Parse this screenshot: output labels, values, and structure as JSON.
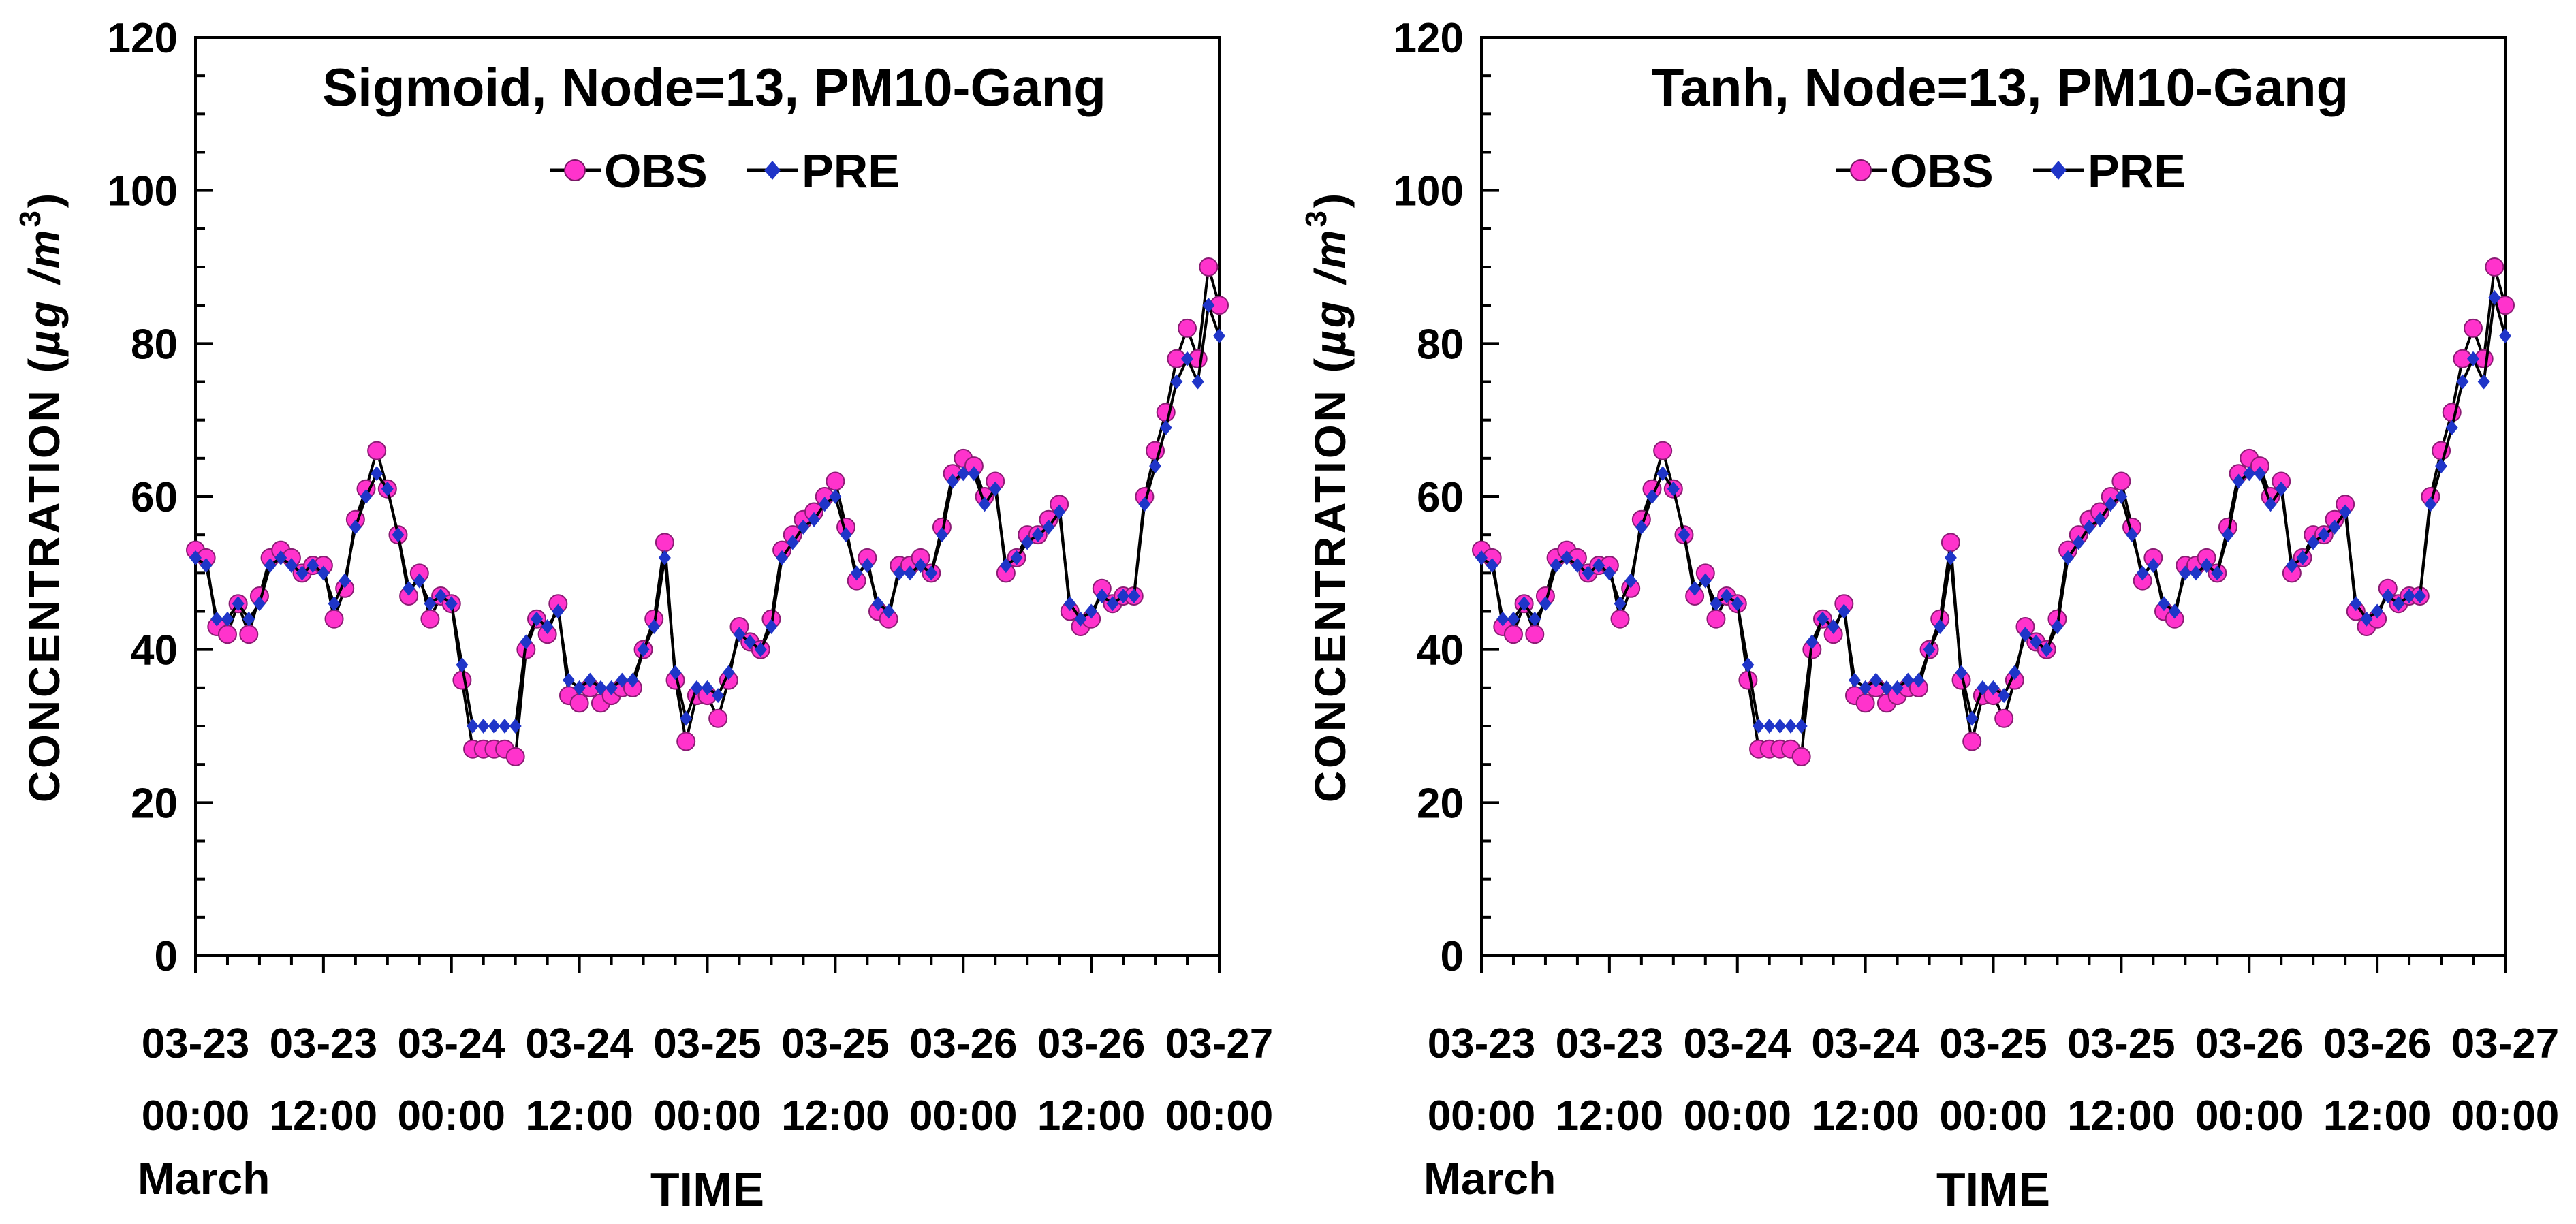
{
  "chart_data": [
    {
      "type": "line",
      "title": "Sigmoid, Node=13, PM10-Gang",
      "ylabel": "CONCENTRATION",
      "ylabel_unit": "µg /m",
      "ylabel_unit_sup": "3",
      "ylabel_paren_open": "(",
      "ylabel_paren_close": ")",
      "xlabel": "TIME",
      "month_label": "March",
      "ylim": [
        0,
        120
      ],
      "yticks": [
        "0",
        "20",
        "40",
        "60",
        "80",
        "100",
        "120"
      ],
      "xlim": [
        0,
        96
      ],
      "xtick_labels": [
        {
          "date": "03-23",
          "time": "00:00"
        },
        {
          "date": "03-23",
          "time": "12:00"
        },
        {
          "date": "03-24",
          "time": "00:00"
        },
        {
          "date": "03-24",
          "time": "12:00"
        },
        {
          "date": "03-25",
          "time": "00:00"
        },
        {
          "date": "03-25",
          "time": "12:00"
        },
        {
          "date": "03-26",
          "time": "00:00"
        },
        {
          "date": "03-26",
          "time": "12:00"
        },
        {
          "date": "03-27",
          "time": "00:00"
        }
      ],
      "legend": [
        "OBS",
        "PRE"
      ],
      "series": [
        {
          "name": "OBS",
          "color": "#ff33cc",
          "marker": "circle",
          "x": [
            0,
            1,
            2,
            3,
            4,
            5,
            6,
            7,
            8,
            9,
            10,
            11,
            12,
            13,
            14,
            15,
            16,
            17,
            18,
            19,
            20,
            21,
            22,
            23,
            24,
            25,
            26,
            27,
            28,
            29,
            30,
            31,
            32,
            33,
            34,
            35,
            36,
            37,
            38,
            39,
            40,
            41,
            42,
            43,
            44,
            45,
            46,
            47,
            48,
            49,
            50,
            51,
            52,
            53,
            54,
            55,
            56,
            57,
            58,
            59,
            60,
            61,
            62,
            63,
            64,
            65,
            66,
            67,
            68,
            69,
            70,
            71,
            72,
            73,
            74,
            75,
            76,
            77,
            78,
            79,
            80,
            81,
            82,
            83,
            84,
            85,
            86,
            87,
            88,
            89,
            90,
            91,
            92,
            93,
            94,
            95,
            96
          ],
          "values": [
            53,
            52,
            43,
            42,
            46,
            42,
            47,
            52,
            53,
            52,
            50,
            51,
            51,
            44,
            48,
            57,
            61,
            66,
            61,
            55,
            47,
            50,
            44,
            47,
            46,
            36,
            27,
            27,
            27,
            27,
            26,
            40,
            44,
            42,
            46,
            34,
            33,
            35,
            33,
            34,
            35,
            35,
            40,
            44,
            54,
            36,
            28,
            34,
            34,
            31,
            36,
            43,
            41,
            40,
            44,
            53,
            55,
            57,
            58,
            60,
            62,
            56,
            49,
            52,
            45,
            44,
            51,
            51,
            52,
            50,
            56,
            63,
            65,
            64,
            60,
            62,
            50,
            52,
            55,
            55,
            57,
            59,
            45,
            43,
            44,
            48,
            46,
            47,
            47,
            60,
            66,
            71,
            78,
            82,
            78,
            90,
            85
          ]
        },
        {
          "name": "PRE",
          "color": "#1f35c8",
          "marker": "diamond",
          "x": [
            0,
            1,
            2,
            3,
            4,
            5,
            6,
            7,
            8,
            9,
            10,
            11,
            12,
            13,
            14,
            15,
            16,
            17,
            18,
            19,
            20,
            21,
            22,
            23,
            24,
            25,
            26,
            27,
            28,
            29,
            30,
            31,
            32,
            33,
            34,
            35,
            36,
            37,
            38,
            39,
            40,
            41,
            42,
            43,
            44,
            45,
            46,
            47,
            48,
            49,
            50,
            51,
            52,
            53,
            54,
            55,
            56,
            57,
            58,
            59,
            60,
            61,
            62,
            63,
            64,
            65,
            66,
            67,
            68,
            69,
            70,
            71,
            72,
            73,
            74,
            75,
            76,
            77,
            78,
            79,
            80,
            81,
            82,
            83,
            84,
            85,
            86,
            87,
            88,
            89,
            90,
            91,
            92,
            93,
            94,
            95,
            96
          ],
          "values": [
            52,
            51,
            44,
            44,
            46,
            44,
            46,
            51,
            52,
            51,
            50,
            51,
            50,
            46,
            49,
            56,
            60,
            63,
            61,
            55,
            48,
            49,
            46,
            47,
            46,
            38,
            30,
            30,
            30,
            30,
            30,
            41,
            44,
            43,
            45,
            36,
            35,
            36,
            35,
            35,
            36,
            36,
            40,
            43,
            52,
            37,
            31,
            35,
            35,
            34,
            37,
            42,
            41,
            40,
            43,
            52,
            54,
            56,
            57,
            59,
            60,
            55,
            50,
            51,
            46,
            45,
            50,
            50,
            51,
            50,
            55,
            62,
            63,
            63,
            59,
            61,
            51,
            52,
            54,
            55,
            56,
            58,
            46,
            44,
            45,
            47,
            46,
            47,
            47,
            59,
            64,
            69,
            75,
            78,
            75,
            85,
            81
          ]
        }
      ]
    },
    {
      "type": "line",
      "title": "Tanh, Node=13, PM10-Gang",
      "ylabel": "CONCENTRATION",
      "ylabel_unit": "µg /m",
      "ylabel_unit_sup": "3",
      "ylabel_paren_open": "(",
      "ylabel_paren_close": ")",
      "xlabel": "TIME",
      "month_label": "March",
      "ylim": [
        0,
        120
      ],
      "yticks": [
        "0",
        "20",
        "40",
        "60",
        "80",
        "100",
        "120"
      ],
      "xlim": [
        0,
        96
      ],
      "xtick_labels": [
        {
          "date": "03-23",
          "time": "00:00"
        },
        {
          "date": "03-23",
          "time": "12:00"
        },
        {
          "date": "03-24",
          "time": "00:00"
        },
        {
          "date": "03-24",
          "time": "12:00"
        },
        {
          "date": "03-25",
          "time": "00:00"
        },
        {
          "date": "03-25",
          "time": "12:00"
        },
        {
          "date": "03-26",
          "time": "00:00"
        },
        {
          "date": "03-26",
          "time": "12:00"
        },
        {
          "date": "03-27",
          "time": "00:00"
        }
      ],
      "legend": [
        "OBS",
        "PRE"
      ],
      "series": [
        {
          "name": "OBS",
          "color": "#ff33cc",
          "marker": "circle",
          "x": [
            0,
            1,
            2,
            3,
            4,
            5,
            6,
            7,
            8,
            9,
            10,
            11,
            12,
            13,
            14,
            15,
            16,
            17,
            18,
            19,
            20,
            21,
            22,
            23,
            24,
            25,
            26,
            27,
            28,
            29,
            30,
            31,
            32,
            33,
            34,
            35,
            36,
            37,
            38,
            39,
            40,
            41,
            42,
            43,
            44,
            45,
            46,
            47,
            48,
            49,
            50,
            51,
            52,
            53,
            54,
            55,
            56,
            57,
            58,
            59,
            60,
            61,
            62,
            63,
            64,
            65,
            66,
            67,
            68,
            69,
            70,
            71,
            72,
            73,
            74,
            75,
            76,
            77,
            78,
            79,
            80,
            81,
            82,
            83,
            84,
            85,
            86,
            87,
            88,
            89,
            90,
            91,
            92,
            93,
            94,
            95,
            96
          ],
          "values": [
            53,
            52,
            43,
            42,
            46,
            42,
            47,
            52,
            53,
            52,
            50,
            51,
            51,
            44,
            48,
            57,
            61,
            66,
            61,
            55,
            47,
            50,
            44,
            47,
            46,
            36,
            27,
            27,
            27,
            27,
            26,
            40,
            44,
            42,
            46,
            34,
            33,
            35,
            33,
            34,
            35,
            35,
            40,
            44,
            54,
            36,
            28,
            34,
            34,
            31,
            36,
            43,
            41,
            40,
            44,
            53,
            55,
            57,
            58,
            60,
            62,
            56,
            49,
            52,
            45,
            44,
            51,
            51,
            52,
            50,
            56,
            63,
            65,
            64,
            60,
            62,
            50,
            52,
            55,
            55,
            57,
            59,
            45,
            43,
            44,
            48,
            46,
            47,
            47,
            60,
            66,
            71,
            78,
            82,
            78,
            90,
            85
          ]
        },
        {
          "name": "PRE",
          "color": "#1f35c8",
          "marker": "diamond",
          "x": [
            0,
            1,
            2,
            3,
            4,
            5,
            6,
            7,
            8,
            9,
            10,
            11,
            12,
            13,
            14,
            15,
            16,
            17,
            18,
            19,
            20,
            21,
            22,
            23,
            24,
            25,
            26,
            27,
            28,
            29,
            30,
            31,
            32,
            33,
            34,
            35,
            36,
            37,
            38,
            39,
            40,
            41,
            42,
            43,
            44,
            45,
            46,
            47,
            48,
            49,
            50,
            51,
            52,
            53,
            54,
            55,
            56,
            57,
            58,
            59,
            60,
            61,
            62,
            63,
            64,
            65,
            66,
            67,
            68,
            69,
            70,
            71,
            72,
            73,
            74,
            75,
            76,
            77,
            78,
            79,
            80,
            81,
            82,
            83,
            84,
            85,
            86,
            87,
            88,
            89,
            90,
            91,
            92,
            93,
            94,
            95,
            96
          ],
          "values": [
            52,
            51,
            44,
            44,
            46,
            44,
            46,
            51,
            52,
            51,
            50,
            51,
            50,
            46,
            49,
            56,
            60,
            63,
            61,
            55,
            48,
            49,
            46,
            47,
            46,
            38,
            30,
            30,
            30,
            30,
            30,
            41,
            44,
            43,
            45,
            36,
            35,
            36,
            35,
            35,
            36,
            36,
            40,
            43,
            52,
            37,
            31,
            35,
            35,
            34,
            37,
            42,
            41,
            40,
            43,
            52,
            54,
            56,
            57,
            59,
            60,
            55,
            50,
            51,
            46,
            45,
            50,
            50,
            51,
            50,
            55,
            62,
            63,
            63,
            59,
            61,
            51,
            52,
            54,
            55,
            56,
            58,
            46,
            44,
            45,
            47,
            46,
            47,
            47,
            59,
            64,
            69,
            75,
            78,
            75,
            86,
            81
          ]
        }
      ]
    }
  ]
}
